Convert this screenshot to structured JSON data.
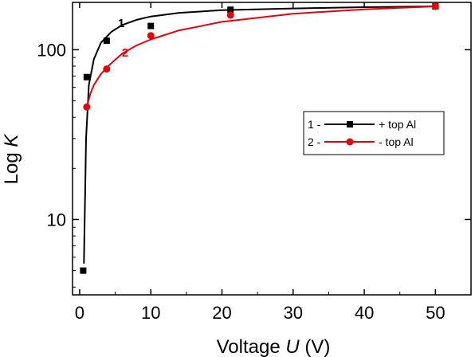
{
  "chart_data": {
    "type": "scatter",
    "xlabel_prefix": "Voltage ",
    "xlabel_var": "U",
    "xlabel_suffix": " (V)",
    "ylabel_prefix": "Log ",
    "ylabel_var": "K",
    "xlim": [
      -1,
      55
    ],
    "ylim": [
      3.6,
      190
    ],
    "yscale": "log",
    "x_ticks": [
      0,
      10,
      20,
      30,
      40,
      50
    ],
    "y_ticks": [
      10,
      100
    ],
    "grid": false,
    "legend_position": "middle-right",
    "series": [
      {
        "name": "+ top Al",
        "legend_prefix": "1 -",
        "curve_label": "1",
        "color": "#000000",
        "marker": "square",
        "x": [
          0.5,
          1,
          3.8,
          10,
          21.2,
          50
        ],
        "y": [
          5,
          69,
          113,
          138,
          172,
          180
        ],
        "fit": {
          "x": [
            0.6,
            0.9,
            1.3,
            2,
            3,
            4.5,
            6,
            8,
            10,
            14,
            20,
            30,
            40,
            50
          ],
          "y": [
            5.5,
            30,
            62,
            88,
            110,
            128,
            140,
            150,
            157,
            165,
            171,
            175,
            178,
            180
          ]
        }
      },
      {
        "name": "- top Al",
        "legend_prefix": "2 -",
        "curve_label": "2",
        "color": "#e8000b",
        "marker": "circle",
        "x": [
          1,
          3.8,
          10,
          21.2,
          50
        ],
        "y": [
          46,
          77,
          121,
          160,
          180
        ],
        "fit": {
          "x": [
            1,
            1.5,
            2,
            3,
            4,
            6,
            8,
            10,
            14,
            20,
            30,
            40,
            50
          ],
          "y": [
            46,
            55,
            62,
            72,
            80,
            95,
            106,
            115,
            130,
            146,
            163,
            173,
            180
          ]
        }
      }
    ]
  }
}
